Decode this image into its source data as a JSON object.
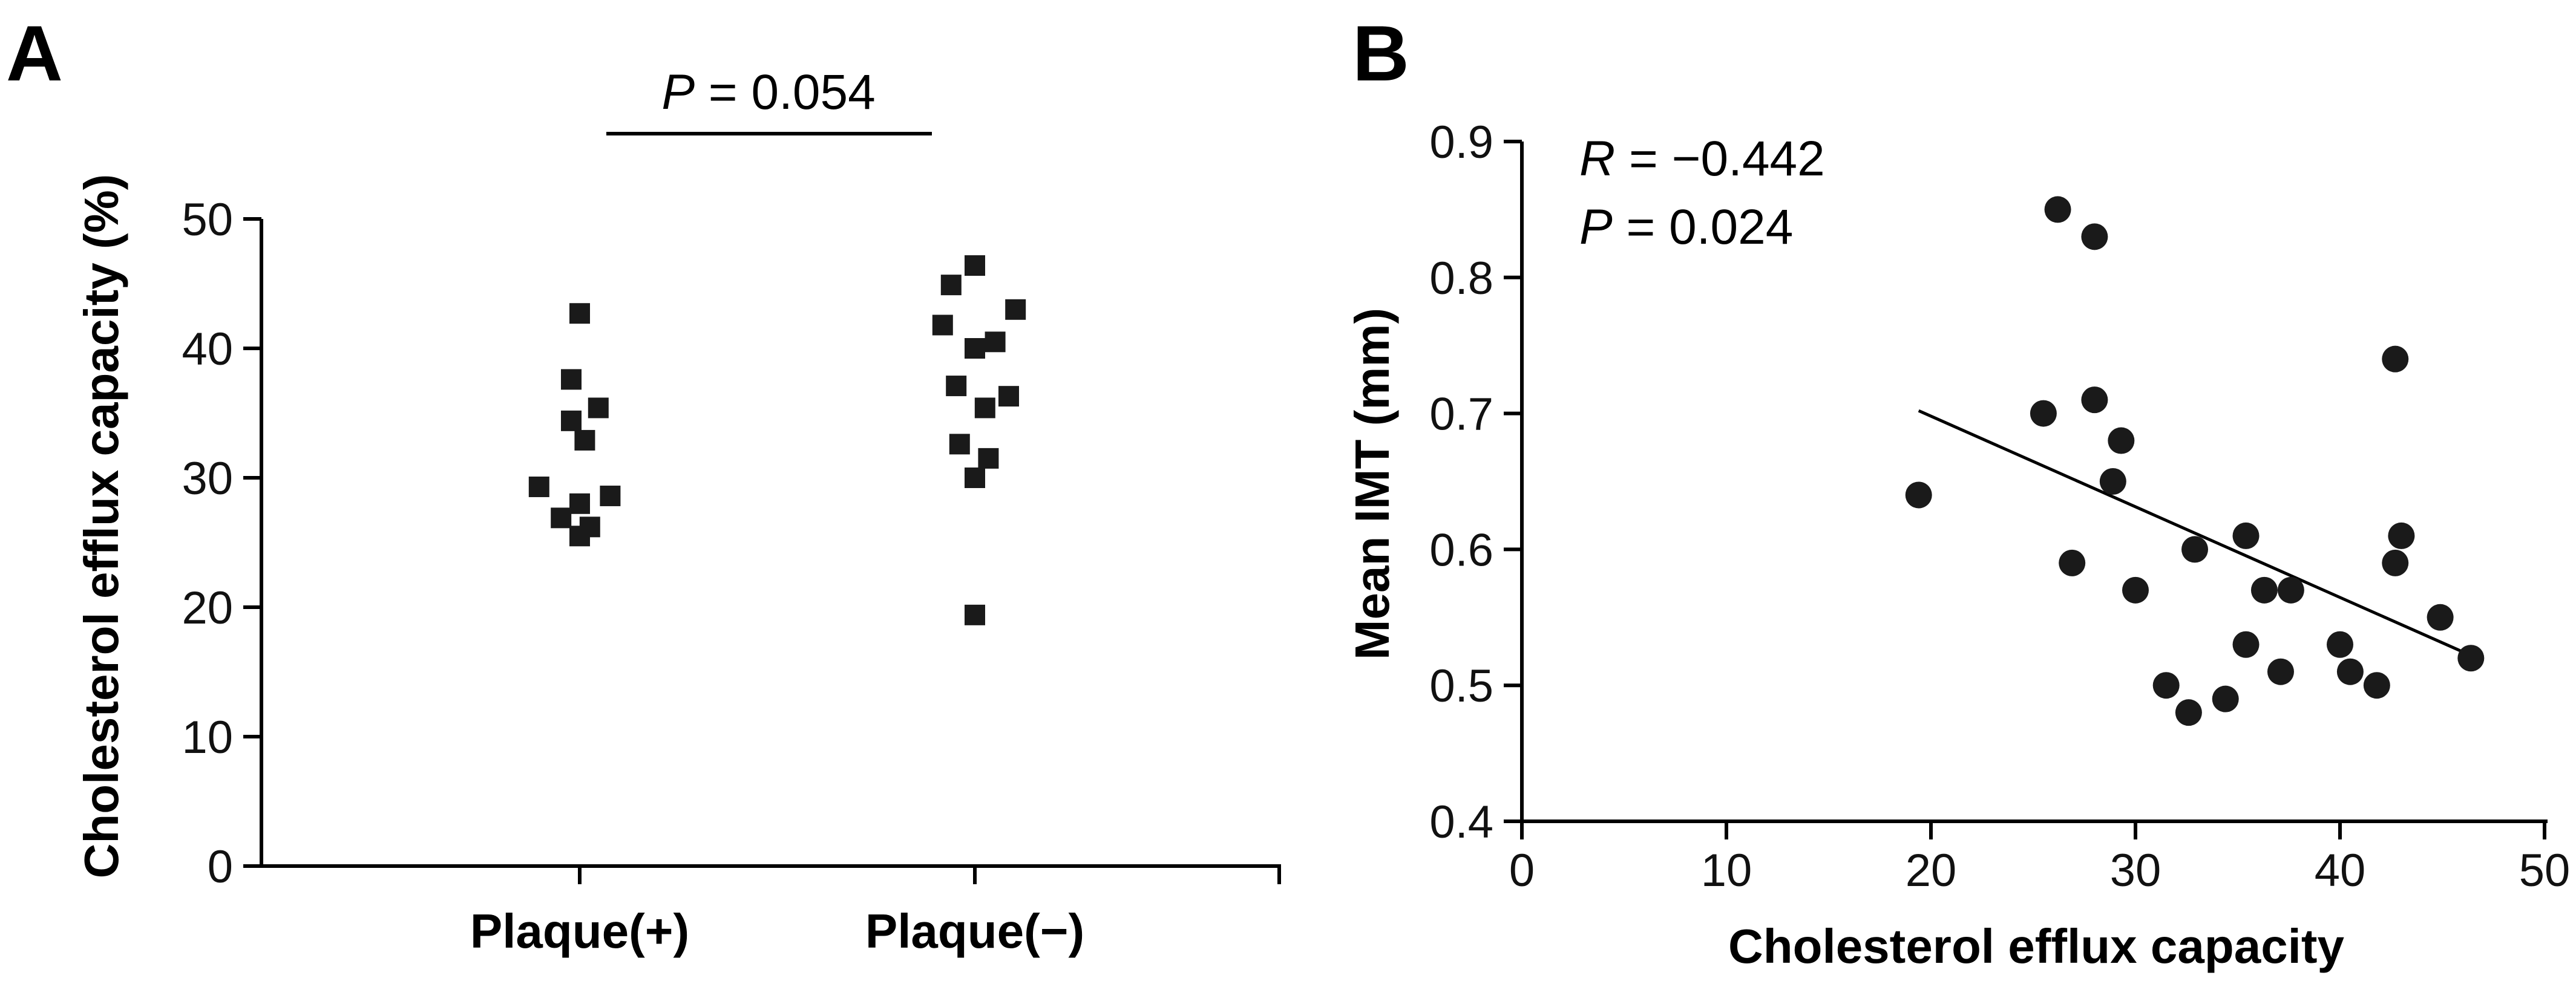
{
  "panels": {
    "a": {
      "letter": "A",
      "stat_label": "P",
      "stat_value": " = 0.054"
    },
    "b": {
      "letter": "B",
      "r_label": "R",
      "r_value": " = −0.442",
      "p_label": "P",
      "p_value": " = 0.024"
    }
  },
  "chart_data": [
    {
      "type": "scatter",
      "subtype": "dot-plot",
      "title": "",
      "xlabel": "",
      "ylabel": "Cholesterol efflux capacity (%)",
      "ylim": [
        0,
        50
      ],
      "yticks": [
        0,
        10,
        20,
        30,
        40,
        50
      ],
      "grid": false,
      "legend": "none",
      "marker": "square",
      "color": "#1a1a1a",
      "categories": [
        "Plaque(+)",
        "Plaque(−)"
      ],
      "annotation": "P = 0.054",
      "series": [
        {
          "category": "Plaque(+)",
          "points": [
            {
              "x": -0.24,
              "y": 29.3
            },
            {
              "x": -0.11,
              "y": 26.9
            },
            {
              "x": -0.05,
              "y": 34.4
            },
            {
              "x": -0.05,
              "y": 37.6
            },
            {
              "x": 0.0,
              "y": 28.0
            },
            {
              "x": 0.0,
              "y": 25.5
            },
            {
              "x": 0.0,
              "y": 42.7
            },
            {
              "x": 0.03,
              "y": 32.9
            },
            {
              "x": 0.06,
              "y": 26.2
            },
            {
              "x": 0.11,
              "y": 35.4
            },
            {
              "x": 0.18,
              "y": 28.6
            }
          ]
        },
        {
          "category": "Plaque(−)",
          "points": [
            {
              "x": -0.19,
              "y": 41.8
            },
            {
              "x": -0.14,
              "y": 44.9
            },
            {
              "x": -0.11,
              "y": 37.1
            },
            {
              "x": -0.09,
              "y": 32.6
            },
            {
              "x": 0.0,
              "y": 46.4
            },
            {
              "x": 0.0,
              "y": 40.0
            },
            {
              "x": 0.0,
              "y": 30.0
            },
            {
              "x": 0.0,
              "y": 19.4
            },
            {
              "x": 0.06,
              "y": 35.4
            },
            {
              "x": 0.08,
              "y": 31.5
            },
            {
              "x": 0.12,
              "y": 40.5
            },
            {
              "x": 0.2,
              "y": 36.3
            },
            {
              "x": 0.24,
              "y": 43.0
            }
          ]
        }
      ]
    },
    {
      "type": "scatter",
      "title": "",
      "xlabel": "Cholesterol efflux capacity",
      "ylabel": "Mean IMT (mm)",
      "xlim": [
        0,
        50
      ],
      "ylim": [
        0.4,
        0.9
      ],
      "xticks": [
        0,
        10,
        20,
        30,
        40,
        50
      ],
      "yticks": [
        0.4,
        0.5,
        0.6,
        0.7,
        0.8,
        0.9
      ],
      "grid": false,
      "legend": "none",
      "marker": "circle",
      "color": "#1a1a1a",
      "annotation": [
        "R = −0.442",
        "P = 0.024"
      ],
      "points": [
        {
          "x": 19.4,
          "y": 0.64
        },
        {
          "x": 25.5,
          "y": 0.7
        },
        {
          "x": 26.2,
          "y": 0.85
        },
        {
          "x": 26.9,
          "y": 0.59
        },
        {
          "x": 28.0,
          "y": 0.83
        },
        {
          "x": 28.0,
          "y": 0.71
        },
        {
          "x": 28.9,
          "y": 0.65
        },
        {
          "x": 29.3,
          "y": 0.68
        },
        {
          "x": 30.0,
          "y": 0.57
        },
        {
          "x": 31.5,
          "y": 0.5
        },
        {
          "x": 32.6,
          "y": 0.48
        },
        {
          "x": 32.9,
          "y": 0.6
        },
        {
          "x": 34.4,
          "y": 0.49
        },
        {
          "x": 35.4,
          "y": 0.61
        },
        {
          "x": 35.4,
          "y": 0.53
        },
        {
          "x": 36.3,
          "y": 0.57
        },
        {
          "x": 37.1,
          "y": 0.51
        },
        {
          "x": 37.6,
          "y": 0.57
        },
        {
          "x": 40.0,
          "y": 0.53
        },
        {
          "x": 40.5,
          "y": 0.51
        },
        {
          "x": 41.8,
          "y": 0.5
        },
        {
          "x": 42.7,
          "y": 0.74
        },
        {
          "x": 42.7,
          "y": 0.59
        },
        {
          "x": 43.0,
          "y": 0.61
        },
        {
          "x": 44.9,
          "y": 0.55
        },
        {
          "x": 46.4,
          "y": 0.52
        }
      ],
      "regression": {
        "x": [
          19.4,
          46.4
        ],
        "y": [
          0.702,
          0.522
        ]
      }
    }
  ]
}
